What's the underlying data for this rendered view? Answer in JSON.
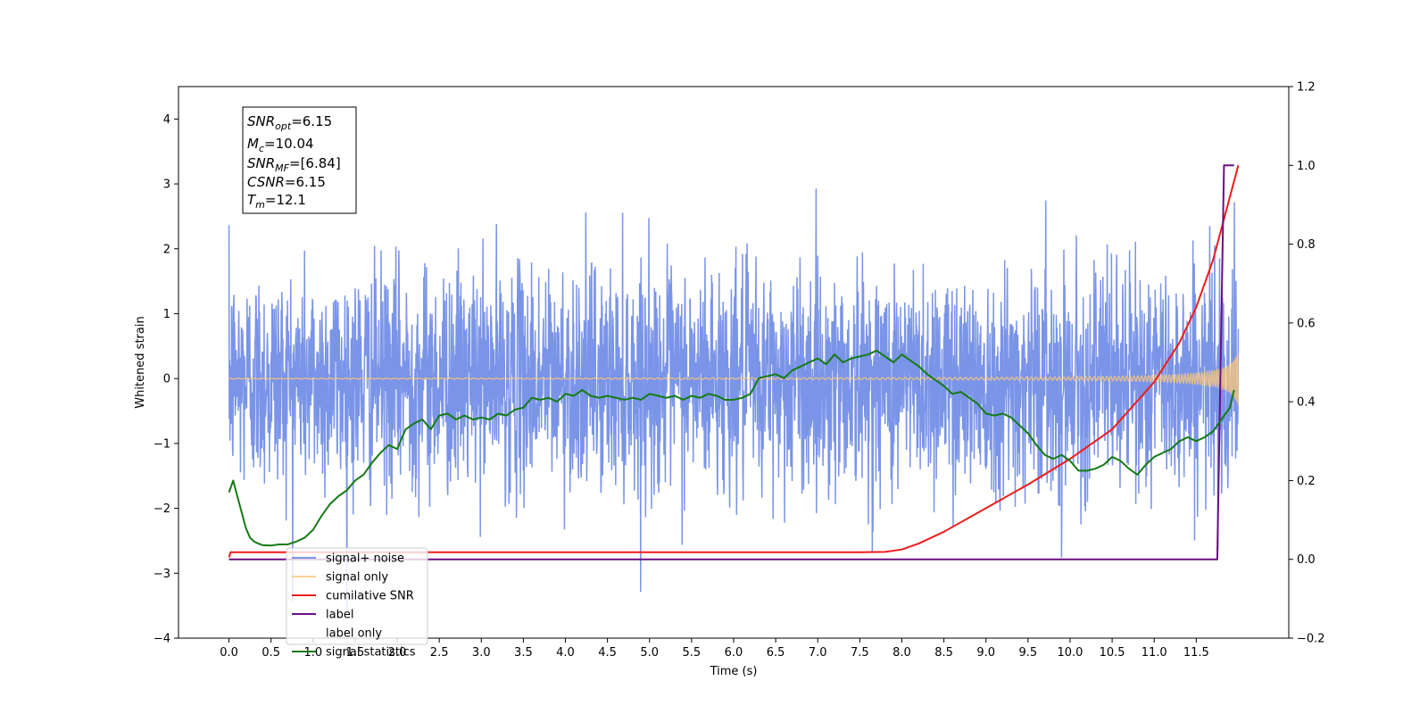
{
  "chart_data": {
    "type": "line",
    "title": "",
    "xlabel": "Time (s)",
    "ylabel": "Whitened strain",
    "xlim": [
      -0.6,
      12.6
    ],
    "ylim": [
      -4,
      4.5
    ],
    "y2lim": [
      -0.2,
      1.2
    ],
    "x_ticks": [
      0.0,
      0.5,
      1.0,
      1.5,
      2.0,
      2.5,
      3.0,
      3.5,
      4.0,
      4.5,
      5.0,
      5.5,
      6.0,
      6.5,
      7.0,
      7.5,
      8.0,
      8.5,
      9.0,
      9.5,
      10.0,
      10.5,
      11.0,
      11.5
    ],
    "x_tick_labels": [
      "0.0",
      "0.5",
      "1.0",
      "1.5",
      "2.0",
      "2.5",
      "3.0",
      "3.5",
      "4.0",
      "4.5",
      "5.0",
      "5.5",
      "6.0",
      "6.5",
      "7.0",
      "7.5",
      "8.0",
      "8.5",
      "9.0",
      "9.5",
      "10.0",
      "10.5",
      "11.0",
      "11.5"
    ],
    "y_ticks": [
      -4,
      -3,
      -2,
      -1,
      0,
      1,
      2,
      3,
      4
    ],
    "y_tick_labels": [
      "−4",
      "−3",
      "−2",
      "−1",
      "0",
      "1",
      "2",
      "3",
      "4"
    ],
    "y2_ticks": [
      -0.2,
      0.0,
      0.2,
      0.4,
      0.6,
      0.8,
      1.0,
      1.2
    ],
    "y2_tick_labels": [
      "−0.2",
      "0.0",
      "0.2",
      "0.4",
      "0.6",
      "0.8",
      "1.0",
      "1.2"
    ],
    "grid": false,
    "legend_position": "bottom-left",
    "annotation": {
      "lines": [
        {
          "base": "SNR",
          "sub": "opt",
          "rest": "=6.15"
        },
        {
          "base": "M",
          "sub": "c",
          "rest": "=10.04"
        },
        {
          "base": "SNR",
          "sub": "MF",
          "rest": "=[6.84]"
        },
        {
          "base": "CSNR",
          "sub": "",
          "rest": "=6.15"
        },
        {
          "base": "T",
          "sub": "m",
          "rest": "=12.1"
        }
      ]
    },
    "series": [
      {
        "name": "signal+ noise",
        "color": "#7a94e8",
        "axis": "left",
        "noise_sigma": 0.85,
        "t_start": 0.0,
        "t_end": 12.0,
        "sample_rate": 256
      },
      {
        "name": "signal only",
        "color": "#ffc87a",
        "axis": "left",
        "t_start": 0.0,
        "t_end": 12.0,
        "end_amplitude": 0.42,
        "merger_time": 12.1
      },
      {
        "name": "cumilative SNR",
        "color": "#ee1c1c",
        "axis": "right",
        "x": [
          0.0,
          0.02,
          7.5,
          7.8,
          8.0,
          8.2,
          8.5,
          9.0,
          9.5,
          10.0,
          10.5,
          11.0,
          11.3,
          11.5,
          11.7,
          11.8,
          11.9,
          12.0
        ],
        "y": [
          0.005,
          0.018,
          0.018,
          0.019,
          0.025,
          0.04,
          0.07,
          0.13,
          0.19,
          0.255,
          0.33,
          0.45,
          0.55,
          0.64,
          0.76,
          0.84,
          0.92,
          1.0
        ]
      },
      {
        "name": "label",
        "color": "#6a0f82",
        "axis": "right",
        "x": [
          0.0,
          11.75,
          11.83,
          11.85,
          11.95
        ],
        "y": [
          0.0,
          0.0,
          1.0,
          1.0,
          1.0
        ]
      },
      {
        "name": "label only",
        "color": "#c8c8c8",
        "axis": "right",
        "hidden_line": true
      },
      {
        "name": "signal statistics",
        "color": "#157a15",
        "axis": "right",
        "x": [
          0.0,
          0.05,
          0.1,
          0.15,
          0.2,
          0.25,
          0.3,
          0.35,
          0.4,
          0.5,
          0.6,
          0.7,
          0.8,
          0.9,
          1.0,
          1.1,
          1.2,
          1.3,
          1.4,
          1.5,
          1.6,
          1.7,
          1.8,
          1.9,
          2.0,
          2.1,
          2.2,
          2.3,
          2.4,
          2.5,
          2.6,
          2.7,
          2.8,
          2.9,
          3.0,
          3.1,
          3.2,
          3.3,
          3.4,
          3.5,
          3.6,
          3.7,
          3.8,
          3.9,
          4.0,
          4.1,
          4.2,
          4.3,
          4.4,
          4.5,
          4.6,
          4.7,
          4.8,
          4.9,
          5.0,
          5.1,
          5.2,
          5.3,
          5.4,
          5.5,
          5.6,
          5.7,
          5.8,
          5.9,
          6.0,
          6.1,
          6.2,
          6.3,
          6.4,
          6.5,
          6.6,
          6.7,
          6.8,
          6.9,
          7.0,
          7.1,
          7.2,
          7.3,
          7.4,
          7.5,
          7.6,
          7.7,
          7.8,
          7.9,
          8.0,
          8.1,
          8.2,
          8.3,
          8.4,
          8.5,
          8.6,
          8.7,
          8.8,
          8.9,
          9.0,
          9.1,
          9.2,
          9.3,
          9.4,
          9.5,
          9.6,
          9.7,
          9.8,
          9.9,
          10.0,
          10.1,
          10.2,
          10.3,
          10.4,
          10.5,
          10.6,
          10.7,
          10.8,
          10.9,
          11.0,
          11.1,
          11.2,
          11.3,
          11.4,
          11.5,
          11.6,
          11.7,
          11.8,
          11.9,
          11.95
        ],
        "y": [
          0.17,
          0.2,
          0.16,
          0.12,
          0.08,
          0.055,
          0.045,
          0.04,
          0.036,
          0.035,
          0.038,
          0.038,
          0.045,
          0.055,
          0.075,
          0.11,
          0.14,
          0.16,
          0.175,
          0.2,
          0.215,
          0.245,
          0.27,
          0.29,
          0.28,
          0.33,
          0.345,
          0.355,
          0.33,
          0.365,
          0.37,
          0.355,
          0.365,
          0.355,
          0.36,
          0.355,
          0.37,
          0.365,
          0.38,
          0.385,
          0.41,
          0.405,
          0.41,
          0.4,
          0.42,
          0.415,
          0.43,
          0.415,
          0.41,
          0.415,
          0.41,
          0.405,
          0.41,
          0.405,
          0.42,
          0.415,
          0.41,
          0.415,
          0.405,
          0.415,
          0.41,
          0.42,
          0.415,
          0.405,
          0.405,
          0.41,
          0.42,
          0.46,
          0.465,
          0.47,
          0.46,
          0.48,
          0.49,
          0.5,
          0.51,
          0.495,
          0.52,
          0.5,
          0.51,
          0.515,
          0.52,
          0.53,
          0.515,
          0.5,
          0.52,
          0.505,
          0.49,
          0.47,
          0.455,
          0.44,
          0.42,
          0.425,
          0.41,
          0.395,
          0.37,
          0.365,
          0.37,
          0.36,
          0.34,
          0.32,
          0.29,
          0.265,
          0.255,
          0.265,
          0.25,
          0.225,
          0.225,
          0.23,
          0.24,
          0.26,
          0.25,
          0.23,
          0.215,
          0.24,
          0.26,
          0.27,
          0.28,
          0.3,
          0.31,
          0.3,
          0.31,
          0.325,
          0.355,
          0.385,
          0.43
        ]
      }
    ]
  }
}
